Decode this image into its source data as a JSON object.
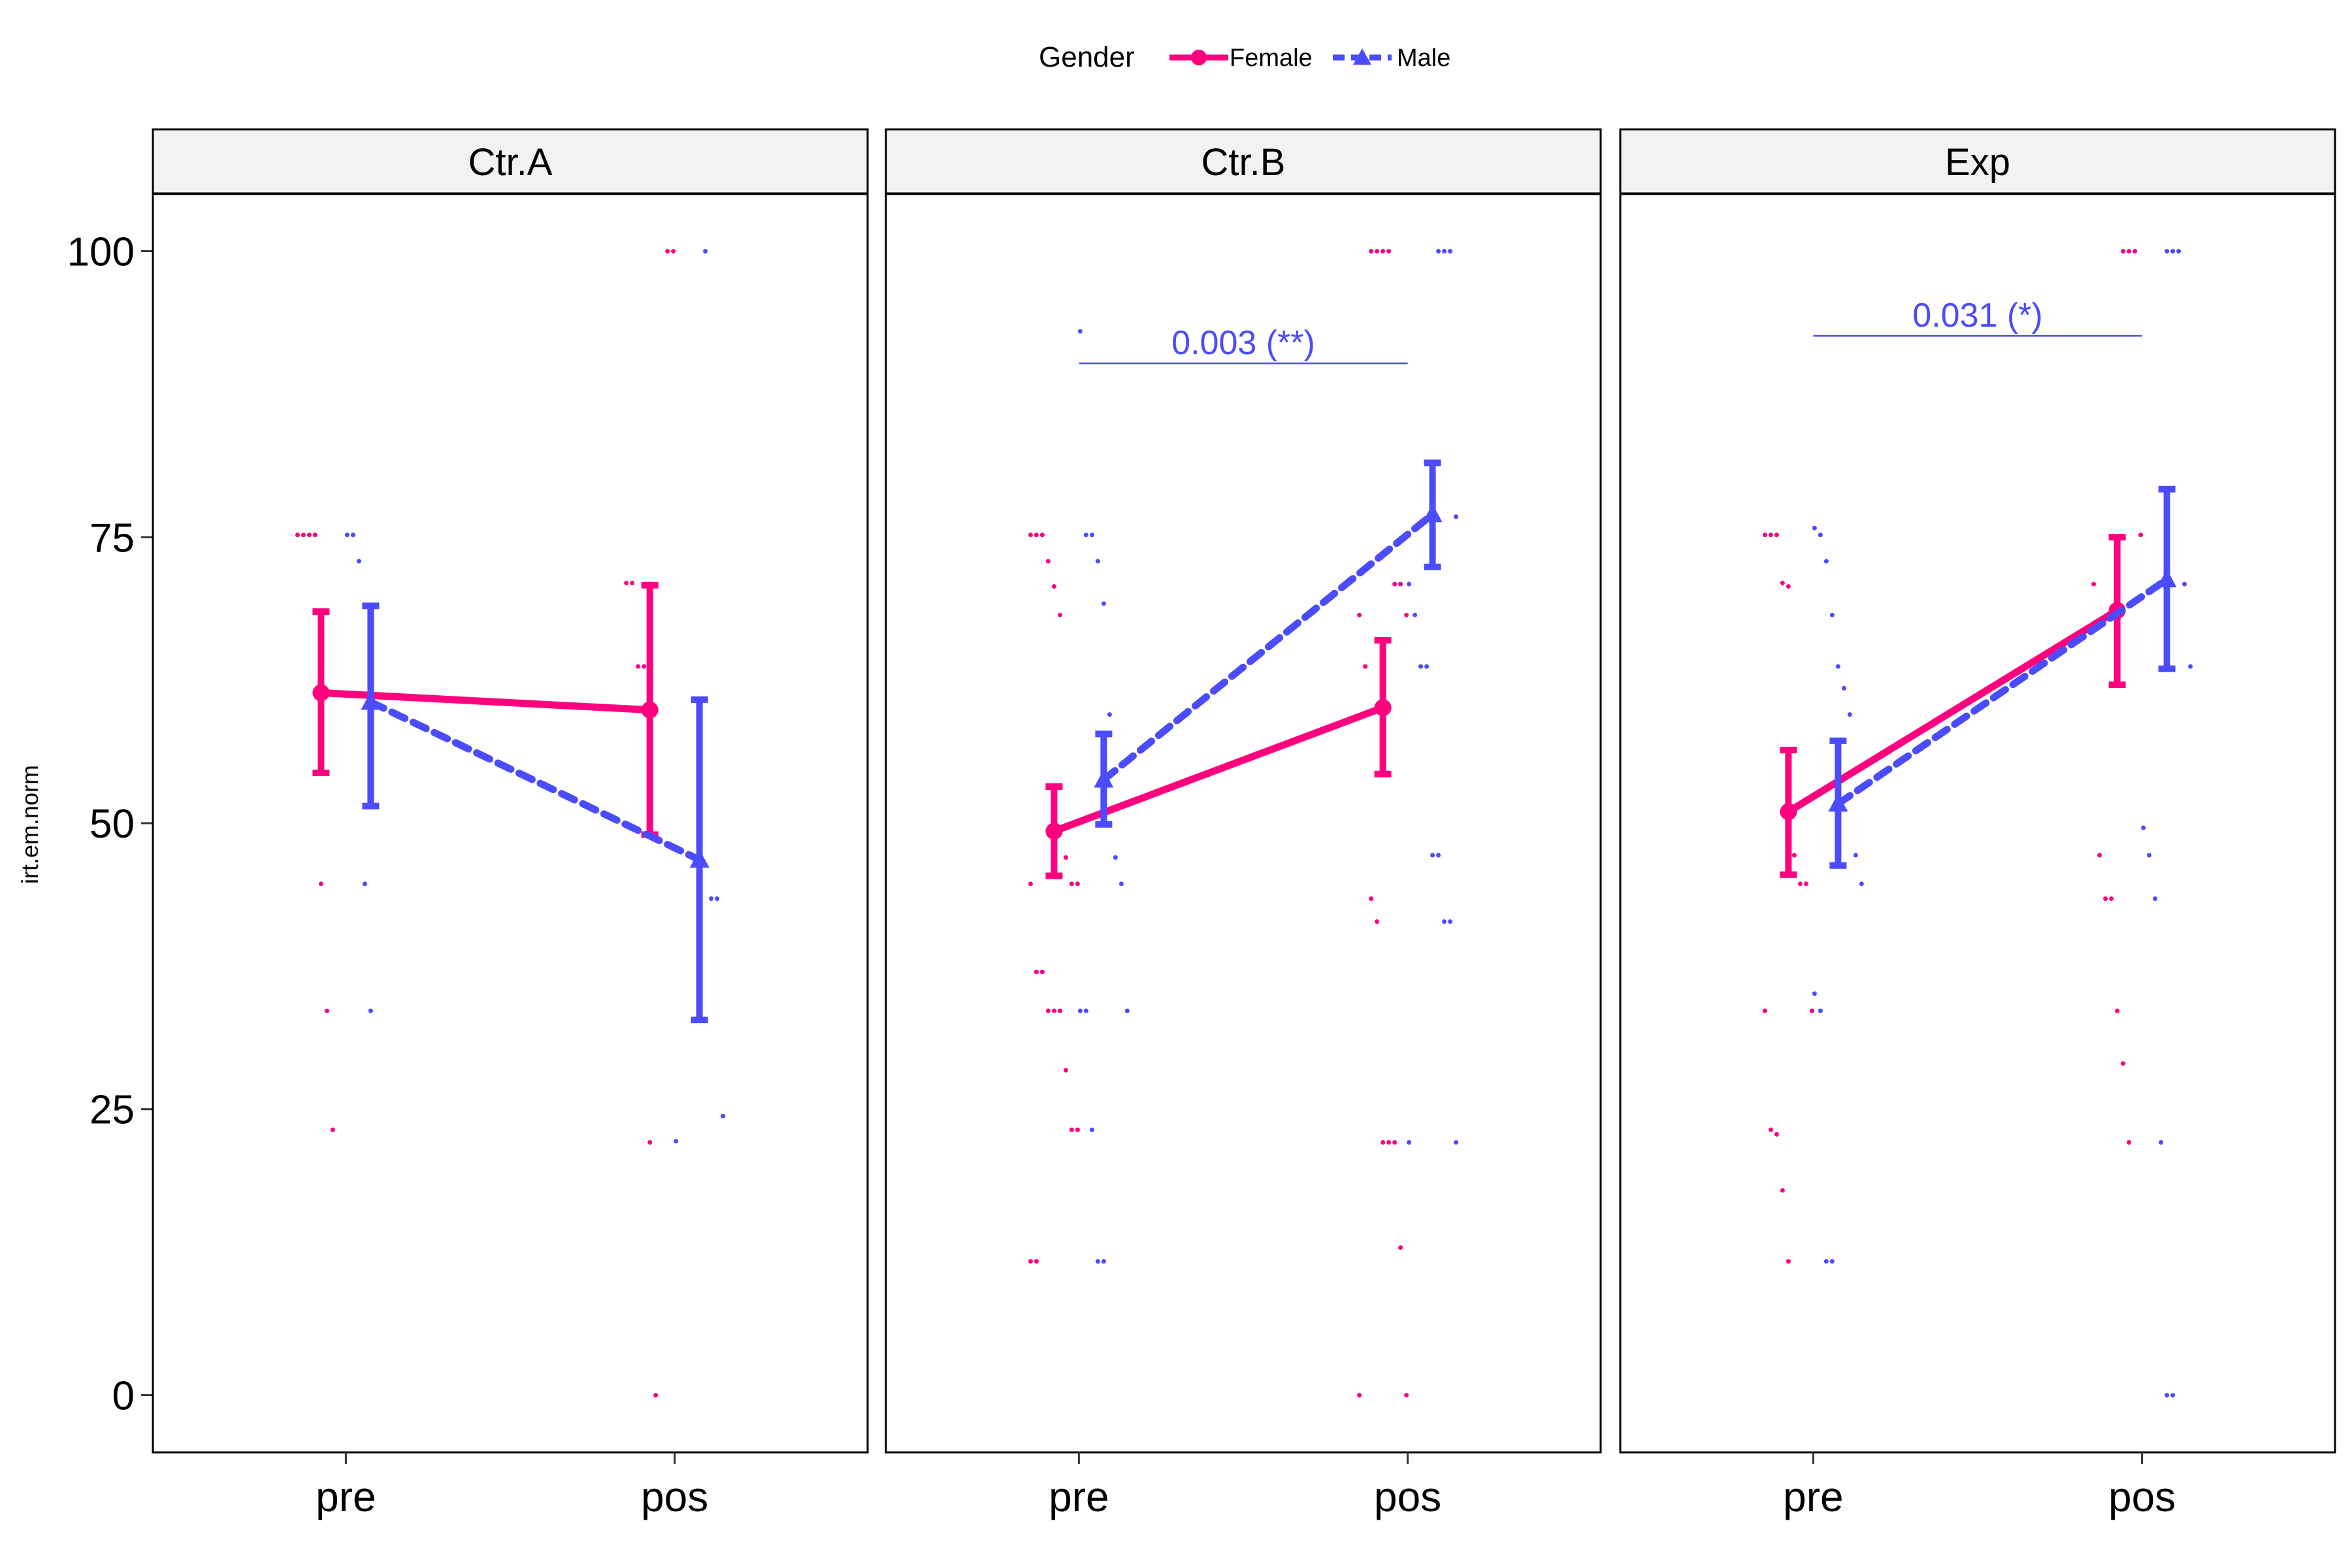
{
  "chart_data": {
    "type": "line",
    "ylabel": "irt.em.norm",
    "xlabel": "",
    "categories": [
      "pre",
      "pos"
    ],
    "ylim": [
      -5,
      105
    ],
    "yticks": [
      0,
      25,
      50,
      75,
      100
    ],
    "grid": false,
    "legend": {
      "title": "Gender",
      "position": "top",
      "items": [
        {
          "name": "Female",
          "color": "#FF007F",
          "marker": "circle",
          "line": "solid"
        },
        {
          "name": "Male",
          "color": "#4B4BFF",
          "marker": "triangle",
          "line": "dashed"
        }
      ]
    },
    "panels": [
      {
        "title": "Ctr.A",
        "series": [
          {
            "name": "Female",
            "mean": [
              61.4,
              59.9
            ],
            "lower": [
              54.4,
              49.0
            ],
            "upper": [
              68.5,
              70.8
            ]
          },
          {
            "name": "Male",
            "mean": [
              60.6,
              46.8
            ],
            "lower": [
              51.5,
              32.8
            ],
            "upper": [
              69.0,
              60.8
            ]
          }
        ],
        "points": {
          "Female": [
            [
              0,
              75.2
            ],
            [
              0,
              75.2
            ],
            [
              0,
              75.2
            ],
            [
              0,
              75.2
            ],
            [
              0,
              44.7
            ],
            [
              0,
              33.6
            ],
            [
              0,
              23.2
            ],
            [
              1,
              100
            ],
            [
              1,
              100
            ],
            [
              1,
              71.0
            ],
            [
              1,
              71.0
            ],
            [
              1,
              63.7
            ],
            [
              1,
              63.7
            ],
            [
              1,
              22.1
            ],
            [
              1,
              0
            ]
          ],
          "Male": [
            [
              0,
              75.2
            ],
            [
              0,
              75.2
            ],
            [
              0,
              72.9
            ],
            [
              0,
              44.7
            ],
            [
              0,
              33.6
            ],
            [
              1,
              100
            ],
            [
              1,
              43.4
            ],
            [
              1,
              43.4
            ],
            [
              1,
              24.4
            ],
            [
              1,
              22.2
            ]
          ]
        },
        "annotation": null
      },
      {
        "title": "Ctr.B",
        "series": [
          {
            "name": "Female",
            "mean": [
              49.3,
              60.1
            ],
            "lower": [
              45.4,
              54.3
            ],
            "upper": [
              53.2,
              66.0
            ]
          },
          {
            "name": "Male",
            "mean": [
              53.8,
              77.0
            ],
            "lower": [
              49.9,
              72.4
            ],
            "upper": [
              57.8,
              81.5
            ]
          }
        ],
        "points": {
          "Female": [
            [
              0,
              75.2
            ],
            [
              0,
              75.2
            ],
            [
              0,
              75.2
            ],
            [
              0,
              72.9
            ],
            [
              0,
              70.7
            ],
            [
              0,
              68.2
            ],
            [
              0,
              47.0
            ],
            [
              0,
              44.7
            ],
            [
              0,
              44.7
            ],
            [
              0,
              44.7
            ],
            [
              0,
              37.0
            ],
            [
              0,
              37.0
            ],
            [
              0,
              33.6
            ],
            [
              0,
              33.6
            ],
            [
              0,
              33.6
            ],
            [
              0,
              28.4
            ],
            [
              0,
              23.2
            ],
            [
              0,
              23.2
            ],
            [
              0,
              11.7
            ],
            [
              0,
              11.7
            ],
            [
              1,
              100
            ],
            [
              1,
              100
            ],
            [
              1,
              100
            ],
            [
              1,
              100
            ],
            [
              1,
              70.9
            ],
            [
              1,
              70.9
            ],
            [
              1,
              68.2
            ],
            [
              1,
              68.2
            ],
            [
              1,
              63.7
            ],
            [
              1,
              43.4
            ],
            [
              1,
              41.4
            ],
            [
              1,
              22.1
            ],
            [
              1,
              22.1
            ],
            [
              1,
              22.1
            ],
            [
              1,
              12.9
            ],
            [
              1,
              0
            ],
            [
              1,
              0
            ]
          ],
          "Male": [
            [
              0,
              93.0
            ],
            [
              0,
              75.2
            ],
            [
              0,
              75.2
            ],
            [
              0,
              72.9
            ],
            [
              0,
              69.2
            ],
            [
              0,
              59.5
            ],
            [
              0,
              47.0
            ],
            [
              0,
              44.7
            ],
            [
              0,
              33.6
            ],
            [
              0,
              33.6
            ],
            [
              0,
              33.6
            ],
            [
              0,
              23.2
            ],
            [
              0,
              11.7
            ],
            [
              0,
              11.7
            ],
            [
              1,
              100
            ],
            [
              1,
              100
            ],
            [
              1,
              100
            ],
            [
              1,
              76.8
            ],
            [
              1,
              70.9
            ],
            [
              1,
              68.2
            ],
            [
              1,
              63.7
            ],
            [
              1,
              63.7
            ],
            [
              1,
              47.2
            ],
            [
              1,
              47.2
            ],
            [
              1,
              41.4
            ],
            [
              1,
              41.4
            ],
            [
              1,
              22.1
            ],
            [
              1,
              22.1
            ]
          ]
        },
        "annotation": {
          "text": "0.003 (**)",
          "y": 90.2,
          "color": "#4B4BFF"
        }
      },
      {
        "title": "Exp",
        "series": [
          {
            "name": "Female",
            "mean": [
              51.0,
              68.6
            ],
            "lower": [
              45.5,
              62.1
            ],
            "upper": [
              56.4,
              75.0
            ]
          },
          {
            "name": "Male",
            "mean": [
              51.7,
              71.3
            ],
            "lower": [
              46.3,
              63.5
            ],
            "upper": [
              57.2,
              79.2
            ]
          }
        ],
        "points": {
          "Female": [
            [
              0,
              75.2
            ],
            [
              0,
              75.2
            ],
            [
              0,
              75.2
            ],
            [
              0,
              71.0
            ],
            [
              0,
              70.7
            ],
            [
              0,
              47.2
            ],
            [
              0,
              44.7
            ],
            [
              0,
              44.7
            ],
            [
              0,
              33.6
            ],
            [
              0,
              33.6
            ],
            [
              0,
              23.2
            ],
            [
              0,
              22.8
            ],
            [
              0,
              17.9
            ],
            [
              0,
              11.7
            ],
            [
              1,
              100
            ],
            [
              1,
              100
            ],
            [
              1,
              100
            ],
            [
              1,
              75.2
            ],
            [
              1,
              70.9
            ],
            [
              1,
              47.2
            ],
            [
              1,
              43.4
            ],
            [
              1,
              43.4
            ],
            [
              1,
              33.6
            ],
            [
              1,
              29.0
            ],
            [
              1,
              22.1
            ]
          ],
          "Male": [
            [
              0,
              75.8
            ],
            [
              0,
              75.2
            ],
            [
              0,
              72.9
            ],
            [
              0,
              68.2
            ],
            [
              0,
              63.7
            ],
            [
              0,
              61.8
            ],
            [
              0,
              59.5
            ],
            [
              0,
              47.2
            ],
            [
              0,
              44.7
            ],
            [
              0,
              35.1
            ],
            [
              0,
              33.6
            ],
            [
              0,
              11.7
            ],
            [
              0,
              11.7
            ],
            [
              1,
              100
            ],
            [
              1,
              100
            ],
            [
              1,
              100
            ],
            [
              1,
              70.9
            ],
            [
              1,
              63.7
            ],
            [
              1,
              49.6
            ],
            [
              1,
              47.2
            ],
            [
              1,
              43.4
            ],
            [
              1,
              22.1
            ],
            [
              1,
              0
            ],
            [
              1,
              0
            ]
          ]
        },
        "annotation": {
          "text": "0.031 (*)",
          "y": 92.6,
          "color": "#4B4BFF"
        }
      }
    ]
  }
}
